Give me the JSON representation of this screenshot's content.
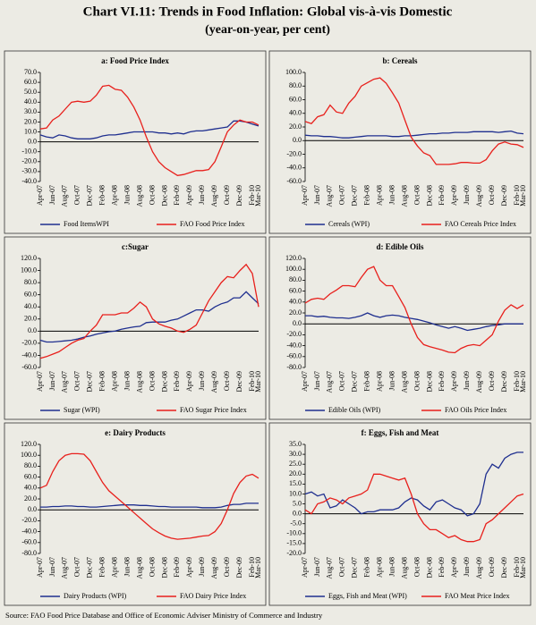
{
  "title": "Chart VI.11: Trends in Food Inflation: Global vis-à-vis Domestic",
  "subtitle": "(year-on-year, per cent)",
  "source": "Source: FAO Food Price Database and Office of Economic Adviser Ministry of Commerce and Industry",
  "chart_data": [
    {
      "type": "line",
      "title": "a: Food Price Index",
      "categories": [
        "Apr-07",
        null,
        "Jun-07",
        null,
        "Aug-07",
        null,
        "Oct-07",
        null,
        "Dec-07",
        null,
        "Feb-08",
        null,
        "Apr-08",
        null,
        "Jun-08",
        null,
        "Aug-08",
        null,
        "Oct-08",
        null,
        "Dec-08",
        null,
        "Feb-09",
        null,
        "Apr-09",
        null,
        "Jun-09",
        null,
        "Aug-09",
        null,
        "Oct-09",
        null,
        "Dec-09",
        null,
        "Feb-10",
        "Mar-10"
      ],
      "ylim": [
        -40,
        70
      ],
      "yticks": [
        {
          "value": -40,
          "label": "-40.0"
        },
        {
          "value": -30,
          "label": "-30.0"
        },
        {
          "value": -20,
          "label": "-20.0"
        },
        {
          "value": -10,
          "label": "-10.0"
        },
        {
          "value": 0,
          "label": "0.0"
        },
        {
          "value": 10,
          "label": "10.0"
        },
        {
          "value": 20,
          "label": "20.0"
        },
        {
          "value": 30,
          "label": "30.0"
        },
        {
          "value": 40,
          "label": "40.0"
        },
        {
          "value": 50,
          "label": "50.0"
        },
        {
          "value": 60,
          "label": "60.0"
        },
        {
          "value": 70,
          "label": "70.0"
        }
      ],
      "series": [
        {
          "name": "Food ItemsWPI",
          "color": "#1f2f8f",
          "values": [
            7,
            5,
            4,
            7,
            6,
            4,
            3,
            3,
            3,
            4,
            6,
            7,
            7,
            8,
            9,
            10,
            10,
            10,
            10,
            9,
            9,
            8,
            9,
            8,
            10,
            11,
            11,
            12,
            13,
            14,
            15,
            21,
            21,
            20,
            18,
            16
          ]
        },
        {
          "name": "FAO Food Price Index",
          "color": "#e8201c",
          "values": [
            13,
            14,
            22,
            26,
            33,
            40,
            41,
            40,
            41,
            47,
            56,
            57,
            53,
            52,
            45,
            35,
            22,
            5,
            -10,
            -20,
            -26,
            -30,
            -34,
            -33,
            -31,
            -29,
            -29,
            -28,
            -20,
            -5,
            10,
            17,
            22,
            20,
            20,
            17
          ]
        }
      ]
    },
    {
      "type": "line",
      "title": "b: Cereals",
      "categories": [
        "Apr-07",
        null,
        "Jun-07",
        null,
        "Aug-07",
        null,
        "Oct-07",
        null,
        "Dec-07",
        null,
        "Feb-08",
        null,
        "Apr-08",
        null,
        "Jun-08",
        null,
        "Aug-08",
        null,
        "Oct-08",
        null,
        "Dec-08",
        null,
        "Feb-09",
        null,
        "Apr-09",
        null,
        "Jun-09",
        null,
        "Aug-09",
        null,
        "Oct-09",
        null,
        "Dec-09",
        null,
        "Feb-10",
        "Mar-10"
      ],
      "ylim": [
        -60,
        100
      ],
      "yticks": [
        {
          "value": -60,
          "label": "-60.0"
        },
        {
          "value": -40,
          "label": "-40.0"
        },
        {
          "value": -20,
          "label": "-20.0"
        },
        {
          "value": 0,
          "label": "0.0"
        },
        {
          "value": 20,
          "label": "20.0"
        },
        {
          "value": 40,
          "label": "40.0"
        },
        {
          "value": 60,
          "label": "60.0"
        },
        {
          "value": 80,
          "label": "80.0"
        },
        {
          "value": 100,
          "label": "100.0"
        }
      ],
      "series": [
        {
          "name": "Cereals (WPI)",
          "color": "#1f2f8f",
          "values": [
            8,
            7,
            7,
            6,
            6,
            5,
            4,
            4,
            5,
            6,
            7,
            7,
            7,
            7,
            6,
            6,
            7,
            7,
            8,
            9,
            10,
            10,
            11,
            11,
            12,
            12,
            12,
            13,
            13,
            13,
            13,
            12,
            13,
            14,
            11,
            10
          ]
        },
        {
          "name": "FAO Cereals Price Index",
          "color": "#e8201c",
          "values": [
            28,
            25,
            35,
            38,
            52,
            42,
            40,
            55,
            65,
            80,
            85,
            90,
            92,
            84,
            70,
            55,
            30,
            5,
            -8,
            -18,
            -22,
            -35,
            -35,
            -35,
            -34,
            -32,
            -32,
            -33,
            -33,
            -28,
            -15,
            -5,
            -2,
            -5,
            -6,
            -10
          ]
        }
      ]
    },
    {
      "type": "line",
      "title": "c:Sugar",
      "categories": [
        "Apr-07",
        null,
        "Jun-07",
        null,
        "Aug-07",
        null,
        "Oct-07",
        null,
        "Dec-07",
        null,
        "Feb-08",
        null,
        "Apr-08",
        null,
        "Jun-08",
        null,
        "Aug-08",
        null,
        "Oct-08",
        null,
        "Dec-08",
        null,
        "Feb-09",
        null,
        "Apr-09",
        null,
        "Jun-09",
        null,
        "Aug-09",
        null,
        "Oct-09",
        null,
        "Dec-09",
        null,
        "Feb-10",
        "Mar-10"
      ],
      "ylim": [
        -60,
        120
      ],
      "yticks": [
        {
          "value": -60,
          "label": "-60.0"
        },
        {
          "value": -40,
          "label": "-40.0"
        },
        {
          "value": -20,
          "label": "-20.0"
        },
        {
          "value": 0,
          "label": "0.0"
        },
        {
          "value": 20,
          "label": "20.0"
        },
        {
          "value": 40,
          "label": "40.0"
        },
        {
          "value": 60,
          "label": "60.0"
        },
        {
          "value": 80,
          "label": "80.0"
        },
        {
          "value": 100,
          "label": "100.0"
        },
        {
          "value": 120,
          "label": "120.0"
        }
      ],
      "series": [
        {
          "name": "Sugar (WPI)",
          "color": "#1f2f8f",
          "values": [
            -15,
            -18,
            -18,
            -17,
            -16,
            -15,
            -13,
            -10,
            -8,
            -5,
            -3,
            -1,
            0,
            3,
            5,
            7,
            8,
            14,
            15,
            15,
            15,
            18,
            20,
            25,
            30,
            35,
            35,
            33,
            40,
            45,
            48,
            55,
            55,
            65,
            55,
            45
          ]
        },
        {
          "name": "FAO Sugar Price Index",
          "color": "#e8201c",
          "values": [
            -45,
            -42,
            -38,
            -34,
            -27,
            -20,
            -15,
            -12,
            0,
            10,
            27,
            27,
            27,
            30,
            30,
            38,
            48,
            40,
            20,
            12,
            8,
            5,
            0,
            -2,
            3,
            10,
            30,
            50,
            65,
            80,
            90,
            88,
            100,
            110,
            95,
            40
          ]
        }
      ]
    },
    {
      "type": "line",
      "title": "d: Edible Oils",
      "categories": [
        "Apr-07",
        null,
        "Jun-07",
        null,
        "Aug-07",
        null,
        "Oct-07",
        null,
        "Dec-07",
        null,
        "Feb-08",
        null,
        "Apr-08",
        null,
        "Jun-08",
        null,
        "Aug-08",
        null,
        "Oct-08",
        null,
        "Dec-08",
        null,
        "Feb-09",
        null,
        "Apr-09",
        null,
        "Jun-09",
        null,
        "Aug-09",
        null,
        "Oct-09",
        null,
        "Dec-09",
        null,
        "Feb-10",
        "Mar-10"
      ],
      "ylim": [
        -80,
        120
      ],
      "yticks": [
        {
          "value": -80,
          "label": "-80.0"
        },
        {
          "value": -60,
          "label": "-60.0"
        },
        {
          "value": -40,
          "label": "-40.0"
        },
        {
          "value": -20,
          "label": "-20.0"
        },
        {
          "value": 0,
          "label": "0.0"
        },
        {
          "value": 20,
          "label": "20.0"
        },
        {
          "value": 40,
          "label": "40.0"
        },
        {
          "value": 60,
          "label": "60.0"
        },
        {
          "value": 80,
          "label": "80.0"
        },
        {
          "value": 100,
          "label": "100.0"
        },
        {
          "value": 120,
          "label": "120.0"
        }
      ],
      "series": [
        {
          "name": "Edible Oils (WPI)",
          "color": "#1f2f8f",
          "values": [
            15,
            15,
            13,
            14,
            12,
            11,
            11,
            10,
            12,
            15,
            20,
            15,
            12,
            15,
            16,
            15,
            12,
            10,
            8,
            5,
            2,
            -2,
            -5,
            -8,
            -5,
            -8,
            -12,
            -10,
            -8,
            -5,
            -3,
            -2,
            0,
            0,
            0,
            0
          ]
        },
        {
          "name": "FAO Oils Price Index",
          "color": "#e8201c",
          "values": [
            38,
            45,
            47,
            45,
            55,
            62,
            70,
            70,
            68,
            85,
            100,
            105,
            80,
            70,
            70,
            50,
            30,
            0,
            -25,
            -38,
            -42,
            -45,
            -48,
            -52,
            -53,
            -45,
            -40,
            -38,
            -40,
            -30,
            -20,
            5,
            25,
            35,
            28,
            35
          ]
        }
      ]
    },
    {
      "type": "line",
      "title": "e: Dairy Products",
      "categories": [
        "Apr-07",
        null,
        "Jun-07",
        null,
        "Aug-07",
        null,
        "Oct-07",
        null,
        "Dec-07",
        null,
        "Feb-08",
        null,
        "Apr-08",
        null,
        "Jun-08",
        null,
        "Aug-08",
        null,
        "Oct-08",
        null,
        "Dec-08",
        null,
        "Feb-09",
        null,
        "Apr-09",
        null,
        "Jun-09",
        null,
        "Aug-09",
        null,
        "Oct-09",
        null,
        "Dec-09",
        null,
        "Feb-10",
        "Mar-10"
      ],
      "ylim": [
        -80,
        120
      ],
      "yticks": [
        {
          "value": -80,
          "label": "-80.0"
        },
        {
          "value": -60,
          "label": "-60.0"
        },
        {
          "value": -40,
          "label": "-40.0"
        },
        {
          "value": -20,
          "label": "-20.0"
        },
        {
          "value": 0,
          "label": "0.0"
        },
        {
          "value": 20,
          "label": "20.0"
        },
        {
          "value": 40,
          "label": "40.0"
        },
        {
          "value": 60,
          "label": "60.0"
        },
        {
          "value": 80,
          "label": "80.0"
        },
        {
          "value": 100,
          "label": "100.0"
        },
        {
          "value": 120,
          "label": "120.0"
        }
      ],
      "series": [
        {
          "name": "Dairy Products (WPI)",
          "color": "#1f2f8f",
          "values": [
            5,
            5,
            6,
            6,
            7,
            7,
            6,
            6,
            5,
            5,
            6,
            7,
            8,
            9,
            9,
            9,
            8,
            8,
            7,
            6,
            6,
            5,
            5,
            5,
            5,
            5,
            4,
            4,
            4,
            5,
            8,
            10,
            10,
            12,
            12,
            12
          ]
        },
        {
          "name": "FAO Dairy Price Index",
          "color": "#e8201c",
          "values": [
            40,
            45,
            70,
            90,
            100,
            103,
            103,
            102,
            90,
            70,
            50,
            35,
            25,
            15,
            5,
            -5,
            -15,
            -25,
            -35,
            -42,
            -48,
            -52,
            -54,
            -53,
            -52,
            -50,
            -48,
            -47,
            -40,
            -25,
            0,
            30,
            50,
            62,
            65,
            58
          ]
        }
      ]
    },
    {
      "type": "line",
      "title": "f: Eggs, Fish and Meat",
      "categories": [
        "Apr-07",
        null,
        "Jun-07",
        null,
        "Aug-07",
        null,
        "Oct-07",
        null,
        "Dec-07",
        null,
        "Feb-08",
        null,
        "Apr-08",
        null,
        "Jun-08",
        null,
        "Aug-08",
        null,
        "Oct-08",
        null,
        "Dec-08",
        null,
        "Feb-09",
        null,
        "Apr-09",
        null,
        "Jun-09",
        null,
        "Aug-09",
        null,
        "Oct-09",
        null,
        "Dec-09",
        null,
        "Feb-10",
        "Mar-10"
      ],
      "ylim": [
        -20,
        35
      ],
      "yticks": [
        {
          "value": -20,
          "label": "-20.0"
        },
        {
          "value": -15,
          "label": "-15.0"
        },
        {
          "value": -10,
          "label": "-10.0"
        },
        {
          "value": -5,
          "label": "-5.0"
        },
        {
          "value": 0,
          "label": "0.0"
        },
        {
          "value": 5,
          "label": "5.0"
        },
        {
          "value": 10,
          "label": "10.0"
        },
        {
          "value": 15,
          "label": "15.0"
        },
        {
          "value": 20,
          "label": "20.0"
        },
        {
          "value": 25,
          "label": "25.0"
        },
        {
          "value": 30,
          "label": "30.0"
        },
        {
          "value": 35,
          "label": "35.0"
        }
      ],
      "series": [
        {
          "name": "Eggs, Fish and Meat (WPI)",
          "color": "#1f2f8f",
          "values": [
            10,
            11,
            9,
            10,
            3,
            4,
            7,
            5,
            3,
            0,
            1,
            1,
            2,
            2,
            2,
            3,
            6,
            8,
            7,
            4,
            2,
            6,
            7,
            5,
            3,
            2,
            -1,
            0,
            5,
            20,
            25,
            23,
            28,
            30,
            31,
            31
          ]
        },
        {
          "name": "FAO Meat Price Index",
          "color": "#e8201c",
          "values": [
            2,
            0,
            5,
            6,
            8,
            7,
            5,
            8,
            9,
            10,
            12,
            20,
            20,
            19,
            18,
            17,
            18,
            10,
            0,
            -5,
            -8,
            -8,
            -10,
            -12,
            -11,
            -13,
            -14,
            -14,
            -13,
            -5,
            -3,
            0,
            3,
            6,
            9,
            10
          ]
        }
      ]
    }
  ]
}
